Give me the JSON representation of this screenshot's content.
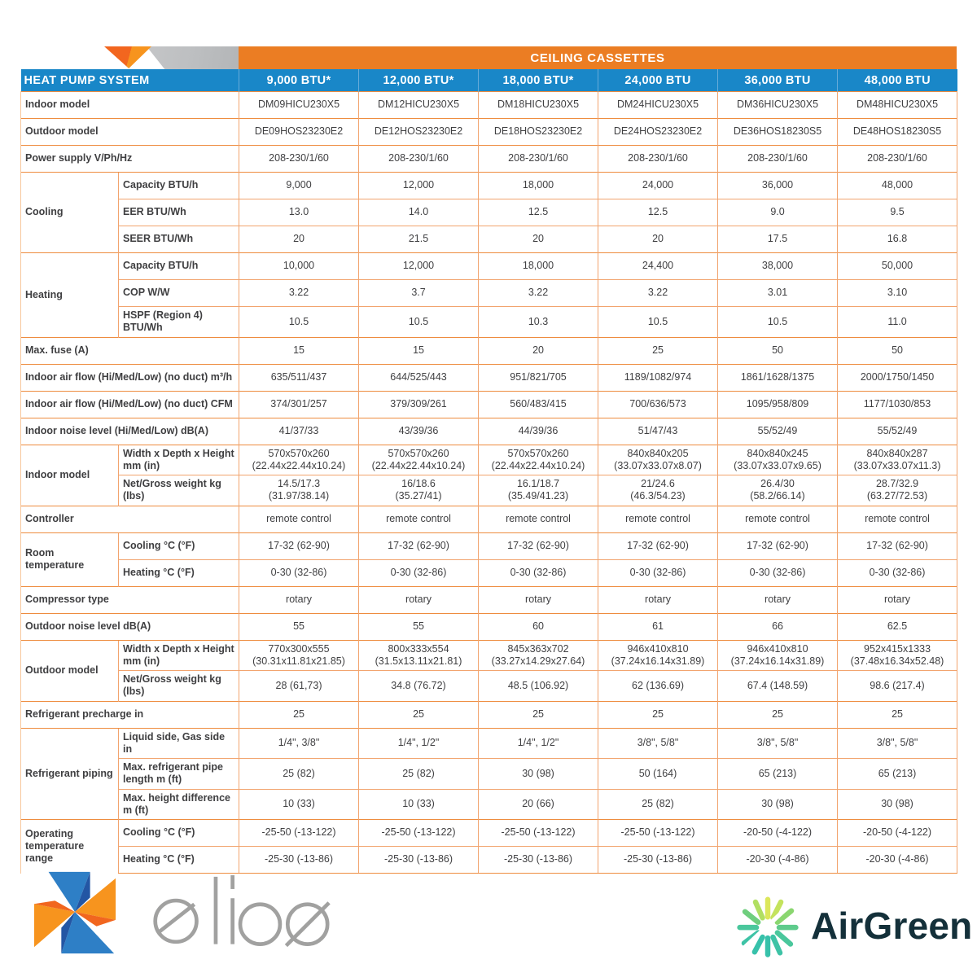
{
  "banner": {
    "title": "CEILING CASSETTES"
  },
  "header": {
    "first_col": "HEAT PUMP SYSTEM",
    "columns": [
      "9,000 BTU*",
      "12,000 BTU*",
      "18,000 BTU*",
      "24,000 BTU",
      "36,000 BTU",
      "48,000 BTU"
    ]
  },
  "colors": {
    "banner_orange": "#EB7D23",
    "header_blue": "#1987C8",
    "label_orange": "#F5821F",
    "grid_orange": "#F2A46E",
    "section_orange": "#EE8C3F",
    "text_dark": "#3F3F41"
  },
  "table": {
    "sections": [
      {
        "label": "Indoor model",
        "values": [
          "DM09HICU230X5",
          "DM12HICU230X5",
          "DM18HICU230X5",
          "DM24HICU230X5",
          "DM36HICU230X5",
          "DM48HICU230X5"
        ]
      },
      {
        "label": "Outdoor model",
        "values": [
          "DE09HOS23230E2",
          "DE12HOS23230E2",
          "DE18HOS23230E2",
          "DE24HOS23230E2",
          "DE36HOS18230S5",
          "DE48HOS18230S5"
        ]
      },
      {
        "label": "Power supply V/Ph/Hz",
        "values": [
          "208-230/1/60",
          "208-230/1/60",
          "208-230/1/60",
          "208-230/1/60",
          "208-230/1/60",
          "208-230/1/60"
        ]
      },
      {
        "group": "Cooling",
        "rows": [
          {
            "label": "Capacity BTU/h",
            "values": [
              "9,000",
              "12,000",
              "18,000",
              "24,000",
              "36,000",
              "48,000"
            ]
          },
          {
            "label": "EER BTU/Wh",
            "values": [
              "13.0",
              "14.0",
              "12.5",
              "12.5",
              "9.0",
              "9.5"
            ]
          },
          {
            "label": "SEER BTU/Wh",
            "values": [
              "20",
              "21.5",
              "20",
              "20",
              "17.5",
              "16.8"
            ]
          }
        ]
      },
      {
        "group": "Heating",
        "rows": [
          {
            "label": "Capacity BTU/h",
            "values": [
              "10,000",
              "12,000",
              "18,000",
              "24,400",
              "38,000",
              "50,000"
            ]
          },
          {
            "label": "COP W/W",
            "values": [
              "3.22",
              "3.7",
              "3.22",
              "3.22",
              "3.01",
              "3.10"
            ]
          },
          {
            "label": "HSPF (Region 4) BTU/Wh",
            "values": [
              "10.5",
              "10.5",
              "10.3",
              "10.5",
              "10.5",
              "11.0"
            ]
          }
        ]
      },
      {
        "label": "Max. fuse (A)",
        "values": [
          "15",
          "15",
          "20",
          "25",
          "50",
          "50"
        ]
      },
      {
        "label": "Indoor air flow (Hi/Med/Low) (no duct) m³/h",
        "values": [
          "635/511/437",
          "644/525/443",
          "951/821/705",
          "1189/1082/974",
          "1861/1628/1375",
          "2000/1750/1450"
        ]
      },
      {
        "label": "Indoor air flow (Hi/Med/Low) (no duct) CFM",
        "values": [
          "374/301/257",
          "379/309/261",
          "560/483/415",
          "700/636/573",
          "1095/958/809",
          "1177/1030/853"
        ]
      },
      {
        "label": "Indoor noise level (Hi/Med/Low) dB(A)",
        "values": [
          "41/37/33",
          "43/39/36",
          "44/39/36",
          "51/47/43",
          "55/52/49",
          "55/52/49"
        ]
      },
      {
        "group": "Indoor model",
        "rows": [
          {
            "label": "Width x Depth x Height mm (in)",
            "values": [
              "570x570x260\n(22.44x22.44x10.24)",
              "570x570x260\n(22.44x22.44x10.24)",
              "570x570x260\n(22.44x22.44x10.24)",
              "840x840x205\n(33.07x33.07x8.07)",
              "840x840x245\n(33.07x33.07x9.65)",
              "840x840x287\n(33.07x33.07x11.3)"
            ]
          },
          {
            "label": "Net/Gross weight kg (lbs)",
            "values": [
              "14.5/17.3\n(31.97/38.14)",
              "16/18.6\n(35.27/41)",
              "16.1/18.7\n(35.49/41.23)",
              "21/24.6\n(46.3/54.23)",
              "26.4/30\n(58.2/66.14)",
              "28.7/32.9\n(63.27/72.53)"
            ]
          }
        ]
      },
      {
        "label": "Controller",
        "values": [
          "remote control",
          "remote control",
          "remote control",
          "remote control",
          "remote control",
          "remote control"
        ]
      },
      {
        "group": "Room temperature",
        "rows": [
          {
            "label": "Cooling °C (°F)",
            "values": [
              "17-32 (62-90)",
              "17-32 (62-90)",
              "17-32 (62-90)",
              "17-32 (62-90)",
              "17-32 (62-90)",
              "17-32 (62-90)"
            ]
          },
          {
            "label": "Heating °C (°F)",
            "values": [
              "0-30 (32-86)",
              "0-30 (32-86)",
              "0-30 (32-86)",
              "0-30 (32-86)",
              "0-30 (32-86)",
              "0-30 (32-86)"
            ]
          }
        ]
      },
      {
        "label": "Compressor type",
        "values": [
          "rotary",
          "rotary",
          "rotary",
          "rotary",
          "rotary",
          "rotary"
        ]
      },
      {
        "label": "Outdoor noise level dB(A)",
        "values": [
          "55",
          "55",
          "60",
          "61",
          "66",
          "62.5"
        ]
      },
      {
        "group": "Outdoor model",
        "rows": [
          {
            "label": "Width x Depth x Height mm (in)",
            "values": [
              "770x300x555\n(30.31x11.81x21.85)",
              "800x333x554\n(31.5x13.11x21.81)",
              "845x363x702\n(33.27x14.29x27.64)",
              "946x410x810\n(37.24x16.14x31.89)",
              "946x410x810\n(37.24x16.14x31.89)",
              "952x415x1333\n(37.48x16.34x52.48)"
            ]
          },
          {
            "label": "Net/Gross weight kg (lbs)",
            "values": [
              "28 (61,73)",
              "34.8 (76.72)",
              "48.5 (106.92)",
              "62 (136.69)",
              "67.4 (148.59)",
              "98.6 (217.4)"
            ]
          }
        ]
      },
      {
        "label": "Refrigerant precharge in",
        "values": [
          "25",
          "25",
          "25",
          "25",
          "25",
          "25"
        ]
      },
      {
        "group": "Refrigerant piping",
        "rows": [
          {
            "label": "Liquid side, Gas side in",
            "values": [
              "1/4\", 3/8\"",
              "1/4\", 1/2\"",
              "1/4\", 1/2\"",
              "3/8\", 5/8\"",
              "3/8\", 5/8\"",
              "3/8\", 5/8\""
            ]
          },
          {
            "label": "Max. refrigerant pipe length m (ft)",
            "values": [
              "25 (82)",
              "25 (82)",
              "30 (98)",
              "50 (164)",
              "65 (213)",
              "65 (213)"
            ]
          },
          {
            "label": "Max. height difference m (ft)",
            "values": [
              "10 (33)",
              "10 (33)",
              "20 (66)",
              "25 (82)",
              "30 (98)",
              "30 (98)"
            ]
          }
        ]
      },
      {
        "group": "Operating temperature range",
        "rows": [
          {
            "label": "Cooling °C (°F)",
            "values": [
              "-25-50 (-13-122)",
              "-25-50 (-13-122)",
              "-25-50 (-13-122)",
              "-25-50 (-13-122)",
              "-20-50 (-4-122)",
              "-20-50 (-4-122)"
            ]
          },
          {
            "label": "Heating °C (°F)",
            "values": [
              "-25-30 (-13-86)",
              "-25-30 (-13-86)",
              "-25-30 (-13-86)",
              "-25-30 (-13-86)",
              "-20-30 (-4-86)",
              "-20-30 (-4-86)"
            ]
          }
        ]
      }
    ]
  },
  "footer": {
    "elios_text": "elios",
    "airgreen_text": "AirGreen"
  }
}
